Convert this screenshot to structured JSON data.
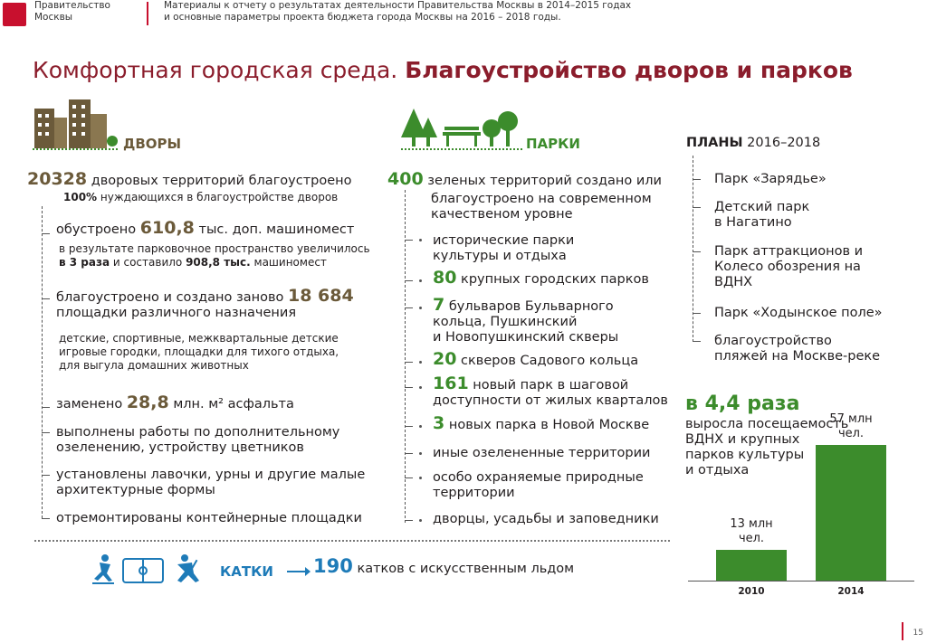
{
  "header": {
    "org_line1": "Правительство",
    "org_line2": "Москвы",
    "title_line1": "Материалы к отчету о результатах деятельности Правительства Москвы в 2014–2015 годах",
    "title_line2": "и основные параметры проекта бюджета города Москвы на 2016 – 2018 годы."
  },
  "title": {
    "light": "Комфортная городская среда. ",
    "bold": "Благоустройство дворов и парков"
  },
  "yards": {
    "heading": "ДВОРЫ",
    "lead_num": "20328",
    "lead_text": " дворовых территорий благоустроено",
    "lead_pct": "100%",
    "lead_sub": " нуждающихся в благоустройстве дворов",
    "items": [
      {
        "pre": "обустроено ",
        "num": "610,8",
        "post": " тыс. доп. машиномест"
      },
      {
        "pre": "благоустроено и создано заново ",
        "num": "18 684"
      },
      {
        "pre": "заменено ",
        "num": "28,8",
        "post": " млн. м² асфальта"
      }
    ],
    "parking_sub1": "в результате парковочное пространство увеличилось",
    "parking_sub2a": "в 3 раза",
    "parking_sub2b": " и составило ",
    "parking_sub2c": "908,8 тыс.",
    "parking_sub2d": " машиномест",
    "playgrounds_line2": "площадки различного назначения",
    "playgrounds_sub1": "детские, спортивные, межквартальные детские",
    "playgrounds_sub2": "игровые городки, площадки для тихого отдыха,",
    "playgrounds_sub3": "для выгула домашних животных",
    "greening1": "выполнены работы по дополнительному",
    "greening2": "озеленению, устройству цветников",
    "benches1": "установлены лавочки, урны и другие малые",
    "benches2": "архитектурные формы",
    "containers": "отремонтированы контейнерные площадки"
  },
  "parks": {
    "heading": "ПАРКИ",
    "lead_num": "400",
    "lead1": " зеленых территорий создано или",
    "lead2": "благоустроено на современном",
    "lead3": "качественом уровне",
    "hist1": "исторические парки",
    "hist2": "культуры и отдыха",
    "big_num": "80",
    "big_text": " крупных городских парков",
    "boul_num": "7",
    "boul1": " бульваров Бульварного",
    "boul2": "кольца, Пушкинский",
    "boul3": "и Новопушкинский скверы",
    "sq_num": "20",
    "sq_text": " скверов Садового кольца",
    "new_num": "161",
    "new1": " новый парк в шаговой",
    "new2": "доступности от жилых кварталов",
    "nm_num": "3",
    "nm_text": " новых парка в Новой Москве",
    "other": "иные озелененные территории",
    "prot1": "особо охраняемые природные",
    "prot2": "территории",
    "palaces": "дворцы, усадьбы и заповедники"
  },
  "plans": {
    "heading_bold": "ПЛАНЫ",
    "heading_years": " 2016–2018",
    "items": [
      [
        "Парк «Зарядье»"
      ],
      [
        "Детский парк",
        "в Нагатино"
      ],
      [
        "Парк аттракционов и",
        "Колесо обозрения на",
        "ВДНХ"
      ],
      [
        "Парк «Ходынское поле»"
      ],
      [
        "благоустройство",
        "пляжей на Москве-реке"
      ]
    ]
  },
  "growth": {
    "headline": "в 4,4 раза",
    "desc1": "выросла посещаемость",
    "desc2": "ВДНХ и крупных",
    "desc3": "парков культуры",
    "desc4": "и отдыха"
  },
  "chart_data": {
    "type": "bar",
    "categories": [
      "2010",
      "2014"
    ],
    "values": [
      13,
      57
    ],
    "value_labels": [
      [
        "13 млн",
        "чел."
      ],
      [
        "57 млн",
        "чел."
      ]
    ],
    "bar_color": "#3c8c2c",
    "ylim": [
      0,
      57
    ]
  },
  "rinks": {
    "label": "КАТКИ",
    "num": "190",
    "text": " катков с искусственным льдом"
  },
  "page_number": "15"
}
